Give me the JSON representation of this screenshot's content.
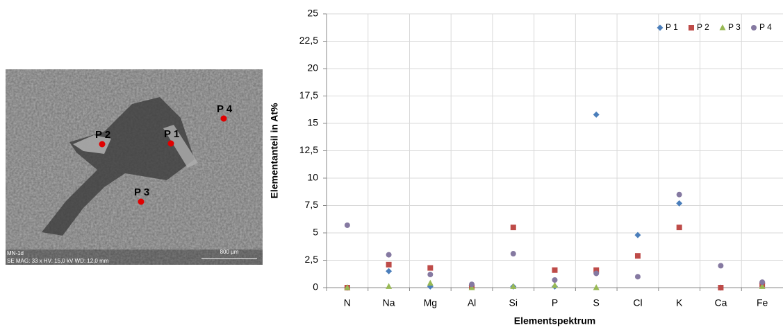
{
  "image": {
    "points": [
      "P 1",
      "P 2",
      "P 3",
      "P 4"
    ],
    "sample": "MN-1d",
    "info": "SE MAG: 33 x HV: 15,0 kV WD: 12,0 mm",
    "scale": "800 µm"
  },
  "chart_data": {
    "type": "scatter",
    "x_label": "Elementspektrum",
    "y_label": "Elementanteil in At%",
    "categories": [
      "N",
      "Na",
      "Mg",
      "Al",
      "Si",
      "P",
      "S",
      "Cl",
      "K",
      "Ca",
      "Fe"
    ],
    "series": [
      {
        "name": "P 1",
        "color": "#4a7ebb",
        "marker": "diamond",
        "values": [
          0,
          1.5,
          0.1,
          0.2,
          0.1,
          0.1,
          15.8,
          4.8,
          7.7,
          0,
          0.4
        ]
      },
      {
        "name": "P 2",
        "color": "#be4b48",
        "marker": "square",
        "values": [
          0,
          2.1,
          1.8,
          0.1,
          5.5,
          1.6,
          1.6,
          2.9,
          5.5,
          0,
          0.3
        ]
      },
      {
        "name": "P 3",
        "color": "#98b954",
        "marker": "triangle",
        "values": [
          0,
          0.1,
          0.4,
          0,
          0.1,
          0.2,
          0,
          null,
          null,
          null,
          0.1
        ]
      },
      {
        "name": "P 4",
        "color": "#8579a1",
        "marker": "circle",
        "values": [
          5.7,
          3.0,
          1.2,
          0.3,
          3.1,
          0.7,
          1.3,
          1.0,
          8.5,
          2.0,
          0.5
        ]
      }
    ],
    "ylim": [
      0,
      25
    ],
    "yticks": [
      0,
      {
        "value": 2.5,
        "label": "2,5"
      },
      5,
      {
        "value": 7.5,
        "label": "7,5"
      },
      10,
      {
        "value": 12.5,
        "label": "12,5"
      },
      15,
      {
        "value": 17.5,
        "label": "17,5"
      },
      20,
      {
        "value": 22.5,
        "label": "22,5"
      },
      25
    ],
    "grid": true,
    "legend": "top-right"
  }
}
